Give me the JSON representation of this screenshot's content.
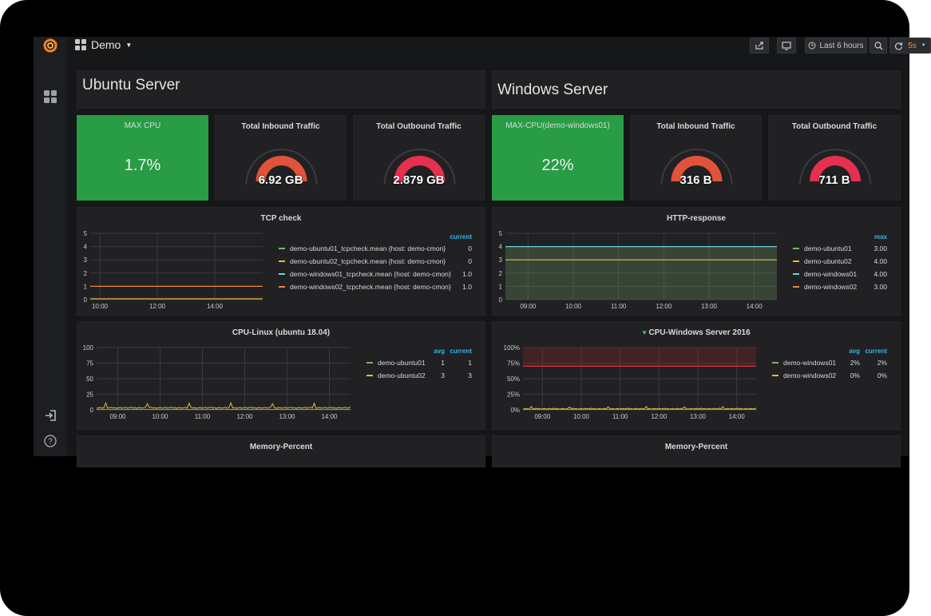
{
  "dashboard": {
    "title": "Demo",
    "time_range": "Last 6 hours",
    "refresh": "5s"
  },
  "rows": [
    {
      "title": "Ubuntu Server"
    },
    {
      "title": "Windows Server"
    }
  ],
  "stats": [
    {
      "title": "MAX CPU",
      "value": "1.7%",
      "type": "singlestat",
      "color": "#299c46"
    },
    {
      "title": "Total Inbound Traffic",
      "value": "6.92 GB",
      "type": "gauge",
      "color": "#e0533a"
    },
    {
      "title": "Total Outbound Traffic",
      "value": "2.879 GB",
      "type": "gauge",
      "color": "#e5304f"
    },
    {
      "title": "MAX-CPU(demo-windows01)",
      "value": "22%",
      "type": "singlestat",
      "color": "#299c46"
    },
    {
      "title": "Total Inbound Traffic",
      "value": "316 B",
      "type": "gauge",
      "color": "#e0533a"
    },
    {
      "title": "Total Outbound Traffic",
      "value": "711 B",
      "type": "gauge",
      "color": "#e5304f"
    }
  ],
  "chart_data": [
    {
      "type": "line",
      "title": "TCP check",
      "x": [
        "10:00",
        "12:00",
        "14:00"
      ],
      "ylim": [
        0,
        5
      ],
      "yticks": [
        "5",
        "4",
        "3",
        "2",
        "1",
        "0"
      ],
      "legend_header": "current",
      "series": [
        {
          "name": "demo-ubuntu01_tcpcheck.mean {host: demo-cmon}",
          "value": "0",
          "color": "#7eb26d"
        },
        {
          "name": "demo-ubuntu02_tcpcheck.mean {host: demo-cmon}",
          "value": "0",
          "color": "#eab839"
        },
        {
          "name": "demo-windows01_tcpcheck.mean {host: demo-cmon}",
          "value": "1.0",
          "color": "#6ed0e0"
        },
        {
          "name": "demo-windows02_tcpcheck.mean {host: demo-cmon}",
          "value": "1.0",
          "color": "#ef843c"
        }
      ]
    },
    {
      "type": "area",
      "title": "HTTP-response",
      "x": [
        "09:00",
        "10:00",
        "11:00",
        "12:00",
        "13:00",
        "14:00"
      ],
      "ylim": [
        0,
        5
      ],
      "yticks": [
        "5",
        "4",
        "3",
        "2",
        "1",
        "0"
      ],
      "legend_header": "max",
      "series": [
        {
          "name": "demo-ubuntu01",
          "value": "3.00",
          "color": "#7eb26d"
        },
        {
          "name": "demo-ubuntu02",
          "value": "4.00",
          "color": "#eab839"
        },
        {
          "name": "demo-windows01",
          "value": "4.00",
          "color": "#6ed0e0"
        },
        {
          "name": "demo-windows02",
          "value": "3.00",
          "color": "#ef843c"
        }
      ]
    },
    {
      "type": "line",
      "title": "CPU-Linux (ubuntu 18.04)",
      "x": [
        "09:00",
        "10:00",
        "11:00",
        "12:00",
        "13:00",
        "14:00"
      ],
      "ylim": [
        0,
        100
      ],
      "yticks": [
        "100",
        "75",
        "50",
        "25",
        "0"
      ],
      "legend_headers": [
        "avg",
        "current"
      ],
      "series": [
        {
          "name": "demo-ubuntu01",
          "avg": "1",
          "current": "1",
          "color": "#7eb26d"
        },
        {
          "name": "demo-ubuntu02",
          "avg": "3",
          "current": "3",
          "color": "#eab839"
        }
      ]
    },
    {
      "type": "line",
      "title": "CPU-Windows Server 2016",
      "x": [
        "09:00",
        "10:00",
        "11:00",
        "12:00",
        "13:00",
        "14:00"
      ],
      "ylim": [
        0,
        100
      ],
      "yticks": [
        "100%",
        "75%",
        "50%",
        "25%",
        "0%"
      ],
      "threshold": 70,
      "legend_headers": [
        "avg",
        "current"
      ],
      "series": [
        {
          "name": "demo-windows01",
          "avg": "2%",
          "current": "2%",
          "color": "#7eb26d"
        },
        {
          "name": "demo-windows02",
          "avg": "0%",
          "current": "0%",
          "color": "#eab839"
        }
      ]
    }
  ],
  "bottom_panels": [
    {
      "title": "Memory-Percent"
    },
    {
      "title": "Memory-Percent"
    }
  ]
}
